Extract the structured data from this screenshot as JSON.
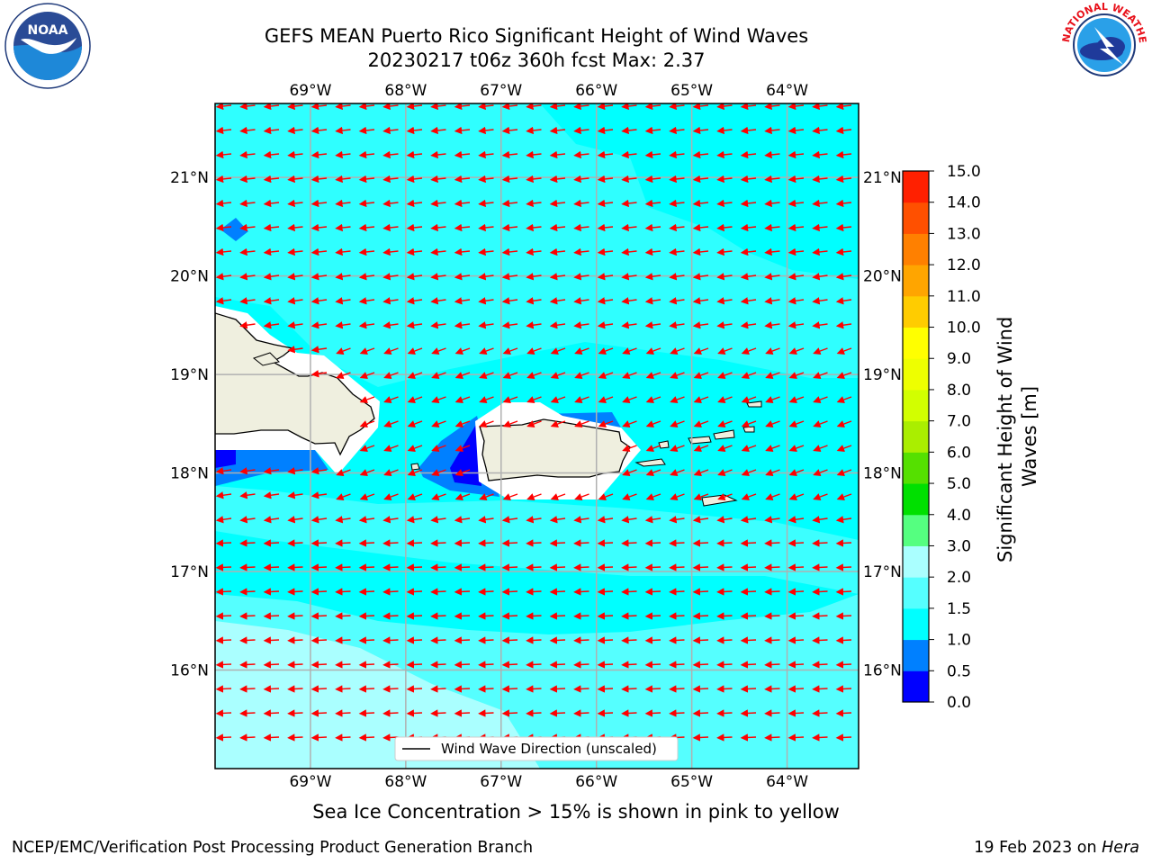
{
  "title": {
    "line1": "GEFS MEAN Puerto Rico Significant Height of Wind Waves",
    "line2": "20230217 t06z 360h fcst   Max: 2.37"
  },
  "logos": {
    "left": {
      "name": "noaa-logo",
      "text": "NOAA"
    },
    "right": {
      "name": "national-weather-service-logo",
      "text": "NATIONAL WEATHER SERVICE"
    }
  },
  "map": {
    "lon_range": [
      -70.0,
      -63.25
    ],
    "lat_range": [
      15.0,
      21.75
    ],
    "lon_ticks": [
      {
        "value": -69,
        "label": "69°W"
      },
      {
        "value": -68,
        "label": "68°W"
      },
      {
        "value": -67,
        "label": "67°W"
      },
      {
        "value": -66,
        "label": "66°W"
      },
      {
        "value": -65,
        "label": "65°W"
      },
      {
        "value": -64,
        "label": "64°W"
      }
    ],
    "lat_ticks": [
      {
        "value": 21,
        "label": "21°N"
      },
      {
        "value": 20,
        "label": "20°N"
      },
      {
        "value": 19,
        "label": "19°N"
      },
      {
        "value": 18,
        "label": "18°N"
      },
      {
        "value": 17,
        "label": "17°N"
      },
      {
        "value": 16,
        "label": "16°N"
      }
    ],
    "grid": true,
    "vector_color": "#ff0000",
    "land_color": "#efefdf",
    "legend": {
      "label": "Wind Wave Direction (unscaled)",
      "placement": "lower-center"
    }
  },
  "colorbar": {
    "label": "Significant Height of Wind Waves [m]",
    "bounds": [
      0.0,
      0.5,
      1.0,
      1.5,
      2.0,
      3.0,
      4.0,
      5.0,
      6.0,
      7.0,
      8.0,
      9.0,
      10.0,
      11.0,
      12.0,
      13.0,
      14.0,
      15.0
    ],
    "tick_labels": [
      "0.0",
      "0.5",
      "1.0",
      "1.5",
      "2.0",
      "3.0",
      "4.0",
      "5.0",
      "6.0",
      "7.0",
      "8.0",
      "9.0",
      "10.0",
      "11.0",
      "12.0",
      "13.0",
      "14.0",
      "15.0"
    ],
    "colors": [
      "#0000ff",
      "#0080ff",
      "#00ffff",
      "#55ffff",
      "#aaffff",
      "#55ff80",
      "#00e000",
      "#55e000",
      "#aaee00",
      "#d2ff00",
      "#eeff00",
      "#ffff00",
      "#ffcc00",
      "#ffa500",
      "#ff8000",
      "#ff5000",
      "#ff2000"
    ]
  },
  "footer": {
    "note": "Sea Ice Concentration > 15% is shown in pink to yellow",
    "credit_left": "NCEP/EMC/Verification Post Processing Product Generation Branch",
    "credit_right_date": "19 Feb 2023 on ",
    "credit_right_host": "Hera"
  }
}
